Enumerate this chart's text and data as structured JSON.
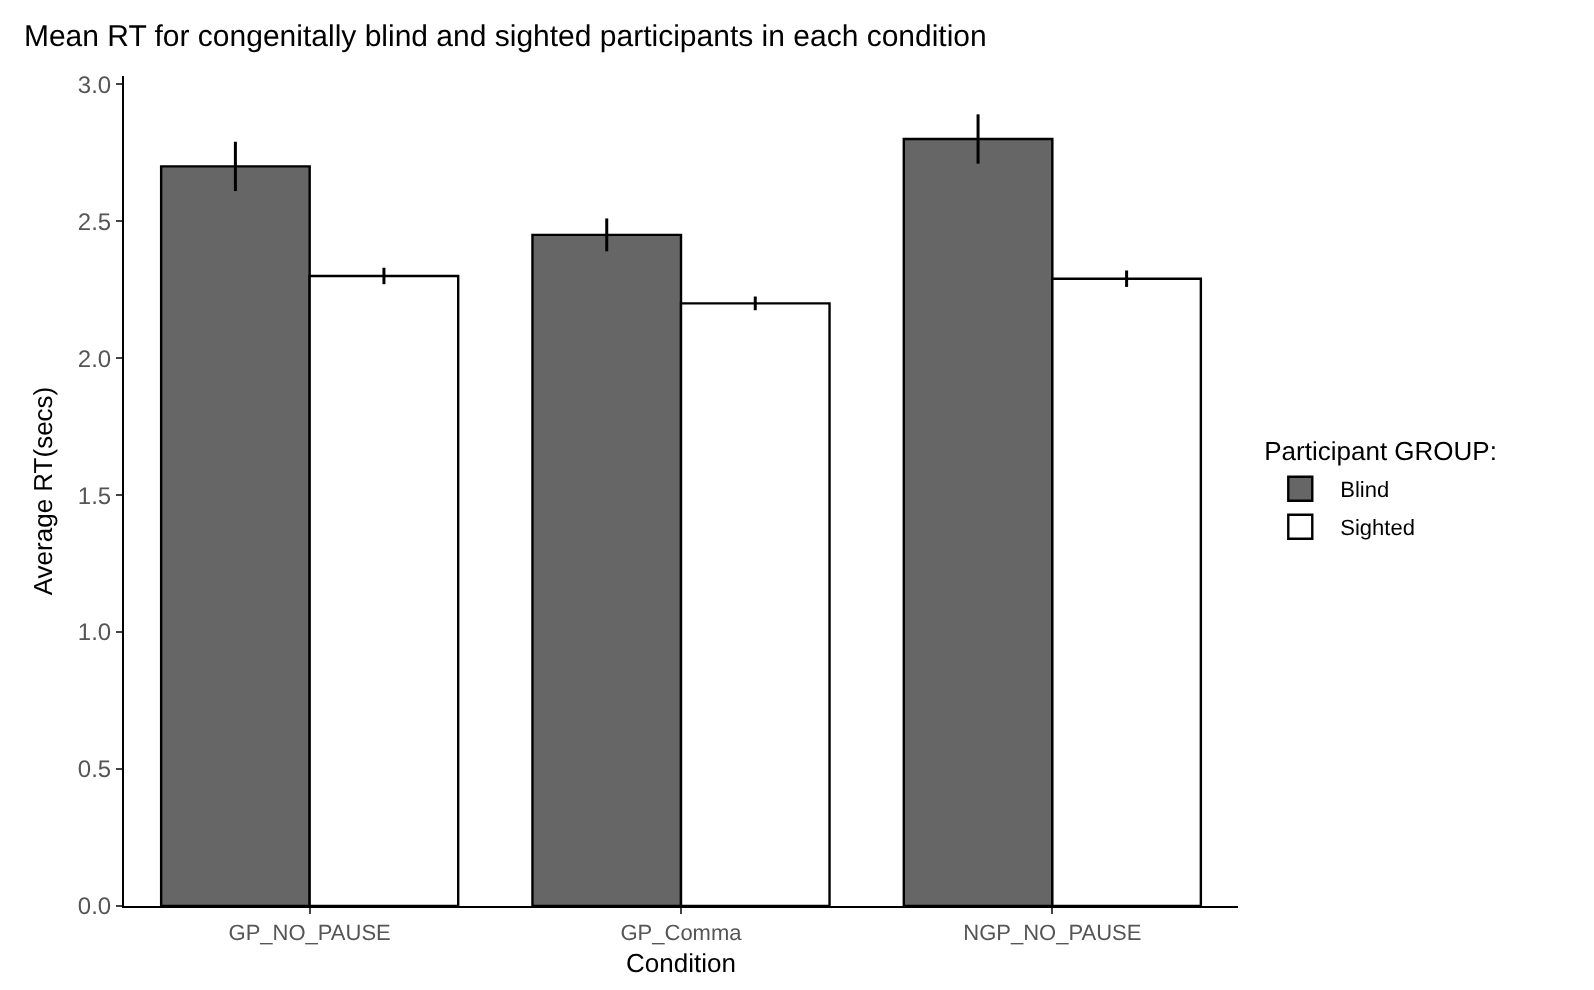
{
  "chart_data": {
    "type": "bar",
    "title": "Mean RT for congenitally blind and sighted participants in each condition",
    "xlabel": "Condition",
    "ylabel": "Average RT(secs)",
    "legend_title": "Participant GROUP:",
    "categories": [
      "GP_NO_PAUSE",
      "GP_Comma",
      "NGP_NO_PAUSE"
    ],
    "series": [
      {
        "name": "Blind",
        "color": "#666666",
        "values": [
          2.7,
          2.45,
          2.8
        ],
        "errors": [
          0.09,
          0.06,
          0.09
        ]
      },
      {
        "name": "Sighted",
        "color": "#ffffff",
        "values": [
          2.3,
          2.2,
          2.29
        ],
        "errors": [
          0.03,
          0.025,
          0.03
        ]
      }
    ],
    "ylim": [
      0,
      3.03
    ],
    "yticks": [
      {
        "value": 0,
        "label": "0.0"
      },
      {
        "value": 0.5,
        "label": "0.5"
      },
      {
        "value": 1,
        "label": "1.0"
      },
      {
        "value": 1.5,
        "label": "1.5"
      },
      {
        "value": 2,
        "label": "2.0"
      },
      {
        "value": 2.5,
        "label": "2.5"
      },
      {
        "value": 3,
        "label": "3.0"
      }
    ],
    "grid": false,
    "legend": "right"
  }
}
